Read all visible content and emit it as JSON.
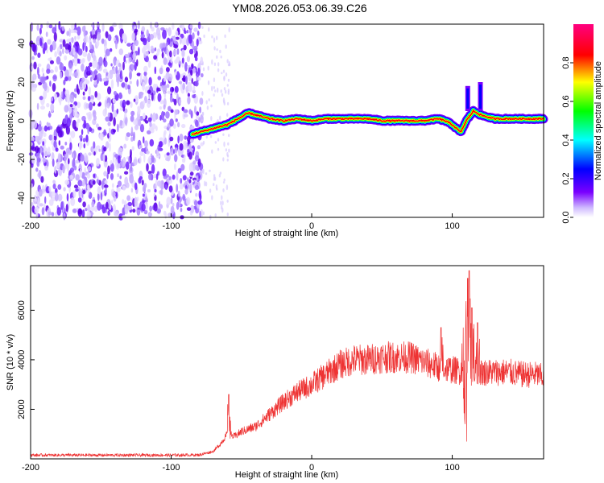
{
  "title": "YM08.2026.053.06.39.C26",
  "chart_data": [
    {
      "type": "heatmap",
      "xlabel": "Height of straight line (km)",
      "ylabel": "Frequency (Hz)",
      "xlim": [
        -200,
        165
      ],
      "ylim": [
        -50,
        50
      ],
      "x_ticks": [
        -200,
        -100,
        0,
        100
      ],
      "y_ticks": [
        -40,
        -20,
        0,
        20,
        40
      ],
      "colorbar": {
        "label": "Normalized spectral amplitude",
        "range": [
          0,
          1
        ],
        "ticks": [
          0.0,
          0.2,
          0.4,
          0.6,
          0.8
        ]
      },
      "noise_region_x": [
        -200,
        -78
      ],
      "ridge": {
        "x": [
          -85,
          -80,
          -75,
          -70,
          -65,
          -60,
          -55,
          -50,
          -45,
          -40,
          -35,
          -30,
          -20,
          -10,
          0,
          10,
          20,
          30,
          40,
          50,
          60,
          70,
          80,
          90,
          95,
          100,
          103,
          106,
          108,
          110,
          112,
          115,
          118,
          120,
          125,
          130,
          140,
          150,
          160,
          165
        ],
        "y": [
          -7,
          -6,
          -5,
          -4,
          -3,
          -2,
          0,
          2,
          4,
          3,
          2,
          1,
          0,
          1,
          0,
          1,
          1,
          1,
          1,
          0,
          0,
          0,
          0,
          1,
          0,
          -2,
          -4,
          -6,
          -3,
          0,
          2,
          5,
          4,
          3,
          2,
          1,
          1,
          1,
          1,
          1
        ]
      },
      "bursts": [
        {
          "x": 111,
          "y_range": [
            5,
            18
          ]
        },
        {
          "x": 120,
          "y_range": [
            5,
            20
          ]
        }
      ]
    },
    {
      "type": "line",
      "xlabel": "Height of straight line (km)",
      "ylabel": "SNR (10 * v/v)",
      "xlim": [
        -200,
        165
      ],
      "ylim": [
        0,
        7800
      ],
      "x_ticks": [
        -200,
        -100,
        0,
        100
      ],
      "y_ticks": [
        2000,
        4000,
        6000
      ],
      "line_color": "#ee3333",
      "envelope": {
        "x": [
          -200,
          -180,
          -160,
          -140,
          -120,
          -100,
          -80,
          -70,
          -65,
          -60,
          -55,
          -50,
          -40,
          -30,
          -20,
          -10,
          0,
          10,
          20,
          30,
          40,
          50,
          60,
          70,
          80,
          90,
          100,
          110,
          120,
          130,
          140,
          150,
          160,
          165
        ],
        "y": [
          150,
          150,
          150,
          150,
          150,
          150,
          160,
          300,
          600,
          1000,
          900,
          1100,
          1300,
          1800,
          2300,
          2700,
          3000,
          3400,
          3800,
          4000,
          4000,
          4100,
          4100,
          4100,
          3900,
          3700,
          3600,
          3500,
          3500,
          3500,
          3500,
          3400,
          3400,
          3300
        ]
      },
      "spikes": [
        {
          "x": -59,
          "y": 2600
        },
        {
          "x": 92,
          "y": 5300
        },
        {
          "x": 108,
          "y": 5300
        },
        {
          "x": 109,
          "y": 1400
        },
        {
          "x": 110,
          "y": 700
        },
        {
          "x": 111,
          "y": 7300
        },
        {
          "x": 112,
          "y": 7600
        },
        {
          "x": 114,
          "y": 6100
        },
        {
          "x": 118,
          "y": 5500
        }
      ]
    }
  ]
}
